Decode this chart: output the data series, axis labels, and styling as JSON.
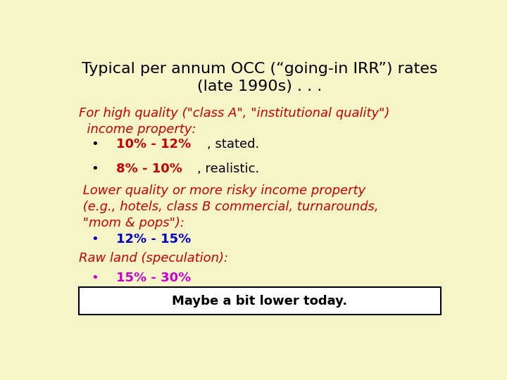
{
  "bg_color": "#f5f5c8",
  "title_line1": "Typical per annum OCC (“going-in IRR”) rates",
  "title_line2": "(late 1990s) . . .",
  "title_color": "#000000",
  "title_fontsize": 16,
  "body_fontsize": 13,
  "highlight_fontsize": 13,
  "bullet_fontsize": 13,
  "footer_text": "Maybe a bit lower today.",
  "footer_color": "#000000",
  "footer_fontsize": 13,
  "red": "#cc0000",
  "blue": "#0000cc",
  "magenta": "#cc00cc",
  "black": "#000000"
}
